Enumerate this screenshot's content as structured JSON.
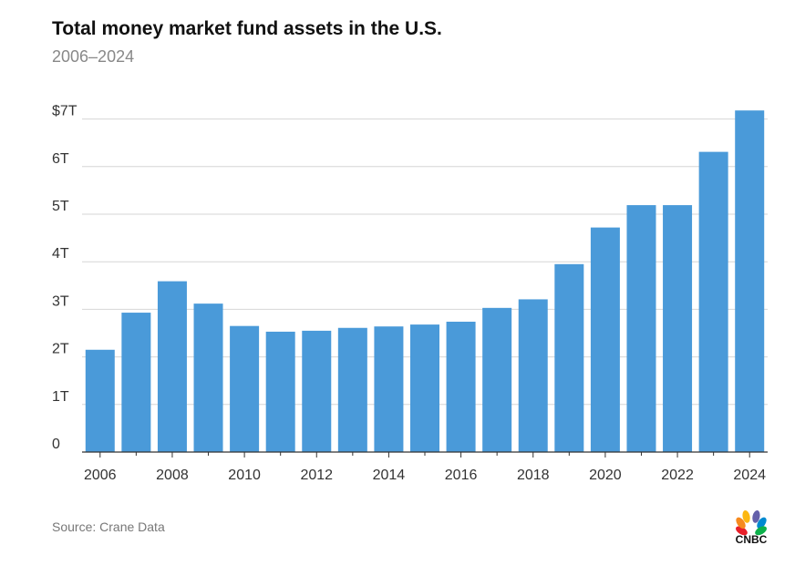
{
  "header": {
    "title": "Total money market fund assets in the U.S.",
    "subtitle": "2006–2024"
  },
  "footer": {
    "source": "Source: Crane Data",
    "logo_text": "CNBC"
  },
  "colors": {
    "bar": "#4a9ad9",
    "grid": "#d6d6d6",
    "axis": "#333333",
    "tick_text": "#333333"
  },
  "chart_data": {
    "type": "bar",
    "title": "Total money market fund assets in the U.S.",
    "subtitle": "2006–2024",
    "categories": [
      "2006",
      "2007",
      "2008",
      "2009",
      "2010",
      "2011",
      "2012",
      "2013",
      "2014",
      "2015",
      "2016",
      "2017",
      "2018",
      "2019",
      "2020",
      "2021",
      "2022",
      "2023",
      "2024"
    ],
    "values": [
      2.15,
      2.93,
      3.59,
      3.12,
      2.65,
      2.53,
      2.55,
      2.61,
      2.64,
      2.68,
      2.74,
      3.03,
      3.21,
      3.95,
      4.72,
      5.19,
      5.19,
      6.31,
      7.18
    ],
    "x_tick_labels": [
      "2006",
      "2008",
      "2010",
      "2012",
      "2014",
      "2016",
      "2018",
      "2020",
      "2022",
      "2024"
    ],
    "y_ticks": [
      0,
      1,
      2,
      3,
      4,
      5,
      6,
      7
    ],
    "y_tick_labels": [
      "0",
      "1T",
      "2T",
      "3T",
      "4T",
      "5T",
      "6T",
      "$7T"
    ],
    "ylim": [
      0,
      7.2
    ],
    "xlabel": "",
    "ylabel": "",
    "grid": true,
    "legend": false
  }
}
